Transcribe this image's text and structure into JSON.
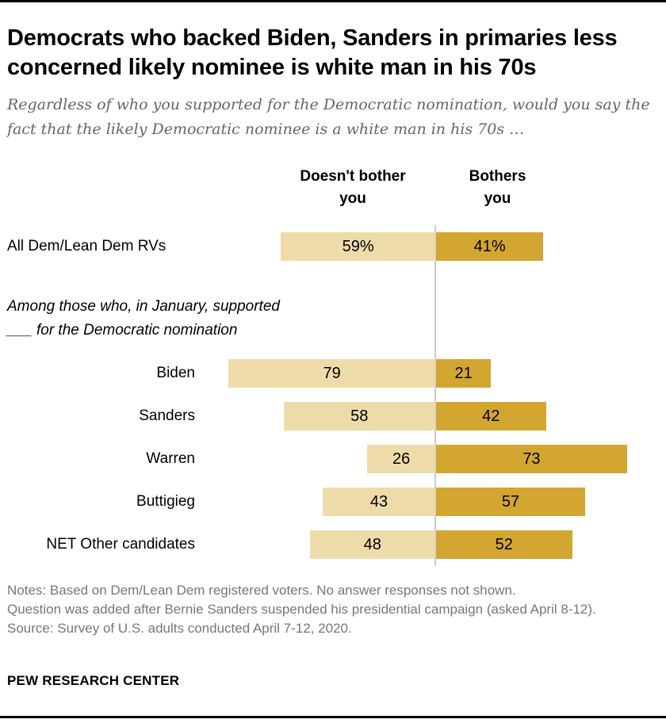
{
  "title": "Democrats who backed Biden, Sanders in primaries less concerned likely nominee is white man in his 70s",
  "subtitle": "Regardless of who you supported for the Democratic nomination, would you say the fact that the likely Democratic nominee is a white man in his 70s …",
  "chart_data": {
    "type": "bar",
    "orientation": "horizontal-diverging",
    "series": [
      {
        "name": "Doesn't bother you",
        "color": "#EDDCAA"
      },
      {
        "name": "Bothers you",
        "color": "#D3A631"
      }
    ],
    "group_label": "Among those who, in January, supported ___ for the Democratic nomination",
    "rows": [
      {
        "label": "All Dem/Lean Dem RVs",
        "values": [
          59,
          41
        ],
        "texts": [
          "59%",
          "41%"
        ]
      },
      {
        "label": "Biden",
        "values": [
          79,
          21
        ],
        "texts": [
          "79",
          "21"
        ]
      },
      {
        "label": "Sanders",
        "values": [
          58,
          42
        ],
        "texts": [
          "58",
          "42"
        ]
      },
      {
        "label": "Warren",
        "values": [
          26,
          73
        ],
        "texts": [
          "26",
          "73"
        ]
      },
      {
        "label": "Buttigieg",
        "values": [
          43,
          57
        ],
        "texts": [
          "43",
          "57"
        ]
      },
      {
        "label": "NET Other candidates",
        "values": [
          48,
          52
        ],
        "texts": [
          "48",
          "52"
        ]
      }
    ]
  },
  "headers": {
    "left_line1": "Doesn't bother",
    "left_line2": "you",
    "right_line1": "Bothers",
    "right_line2": "you"
  },
  "group": {
    "line1": "Among those who, in January, supported",
    "line2": "___ for the Democratic nomination"
  },
  "notes": [
    "Notes: Based on Dem/Lean Dem registered voters. No answer responses not shown.",
    "Question was added after Bernie Sanders suspended his presidential campaign (asked April 8-12).",
    "Source: Survey of U.S. adults conducted April 7-12, 2020."
  ],
  "brand": "PEW RESEARCH CENTER"
}
